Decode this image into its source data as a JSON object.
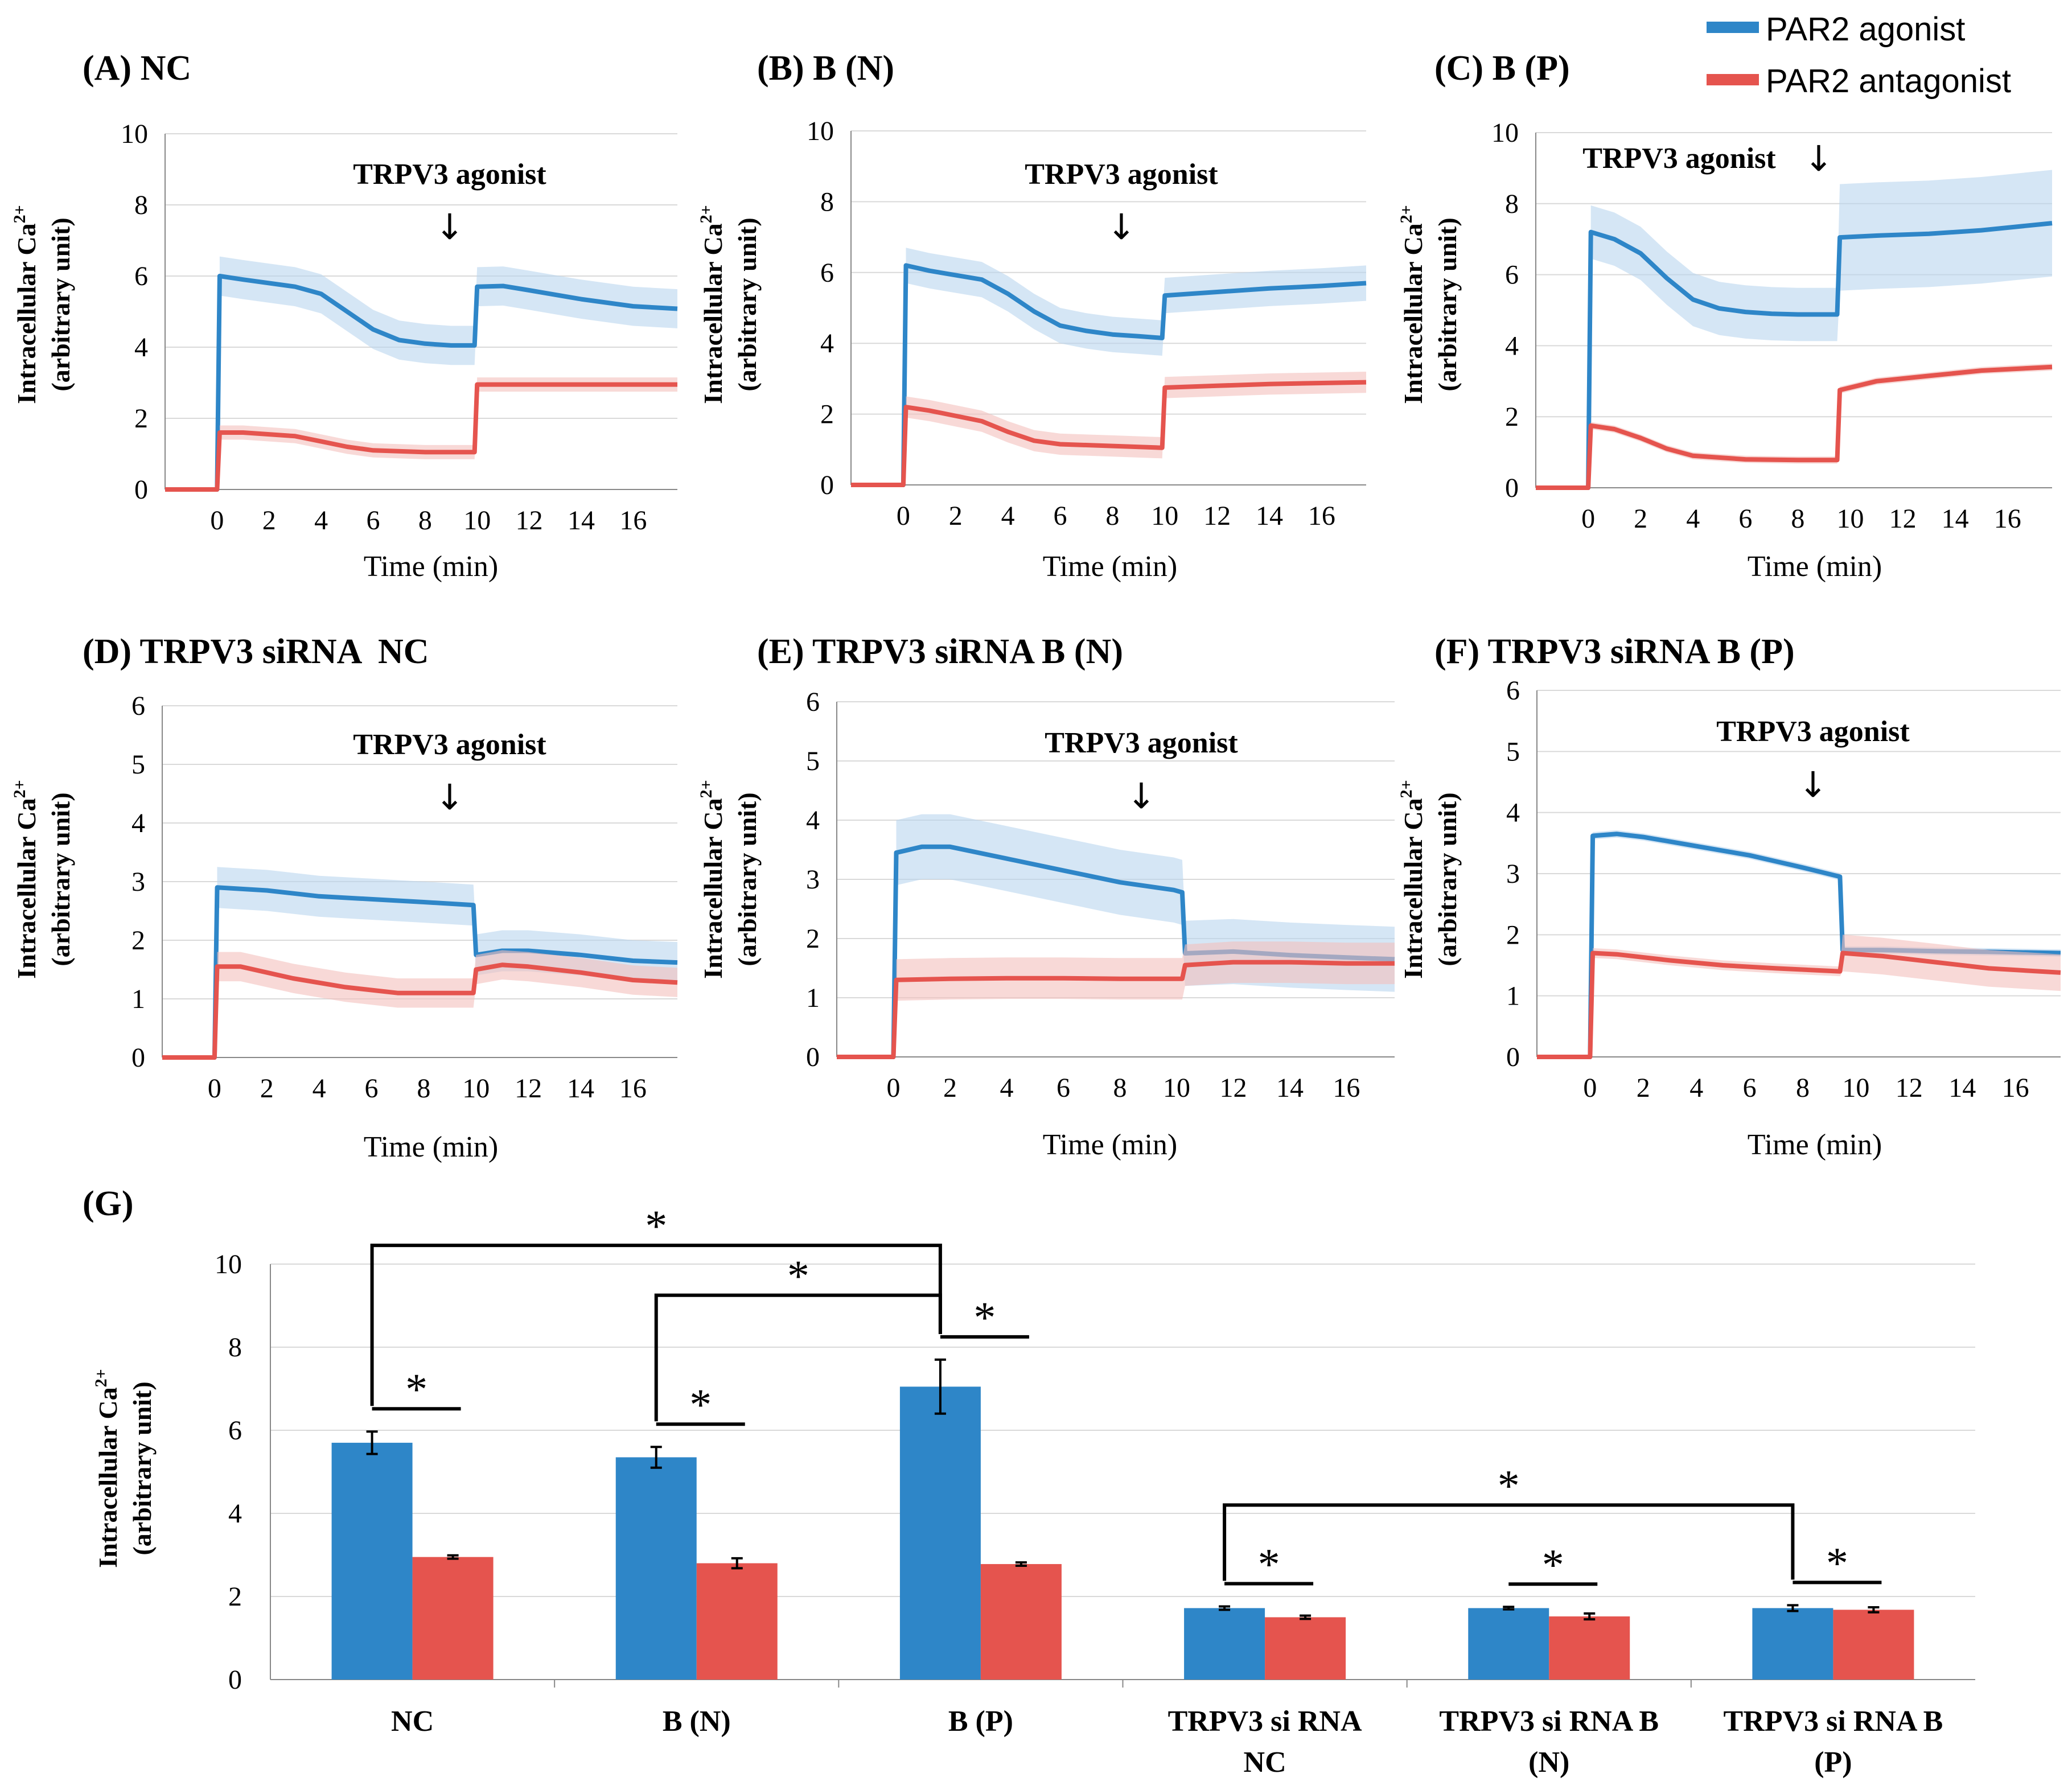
{
  "legend": {
    "agonist_label": "PAR2 agonist",
    "antagonist_label": "PAR2 antagonist"
  },
  "colors": {
    "agonist": "#2E86C8",
    "antagonist": "#E5544E",
    "agonist_band": "#b9d6ee",
    "antagonist_band": "#f4c0bd"
  },
  "chart_data": [
    {
      "type": "line",
      "id": "A",
      "title": "(A) NC",
      "annotation": "TRPV3 agonist",
      "annotation_x": 10,
      "xlabel": "Time (min)",
      "ylabel_line1": "Intracellular Ca",
      "ylabel_sup": "2+",
      "ylabel_line2": "(arbitrary unit)",
      "xlim": [
        -2,
        17.7
      ],
      "ylim": [
        0,
        10
      ],
      "x_ticks": [
        0,
        2,
        4,
        6,
        8,
        10,
        12,
        14,
        16
      ],
      "y_ticks": [
        0,
        2,
        4,
        6,
        8,
        10
      ],
      "series": [
        {
          "name": "PAR2 agonist",
          "error": 0.55,
          "points": [
            [
              -2,
              0
            ],
            [
              0,
              0
            ],
            [
              0.1,
              6.0
            ],
            [
              1,
              5.9
            ],
            [
              3,
              5.7
            ],
            [
              4,
              5.5
            ],
            [
              5,
              5.0
            ],
            [
              6,
              4.5
            ],
            [
              7,
              4.2
            ],
            [
              8,
              4.1
            ],
            [
              9,
              4.05
            ],
            [
              9.9,
              4.05
            ],
            [
              10,
              5.7
            ],
            [
              11,
              5.72
            ],
            [
              12,
              5.6
            ],
            [
              14,
              5.35
            ],
            [
              16,
              5.15
            ],
            [
              17.7,
              5.08
            ]
          ]
        },
        {
          "name": "PAR2 antagonist",
          "error": 0.2,
          "points": [
            [
              -2,
              0
            ],
            [
              0,
              0
            ],
            [
              0.1,
              1.6
            ],
            [
              1,
              1.6
            ],
            [
              3,
              1.5
            ],
            [
              4,
              1.35
            ],
            [
              5,
              1.2
            ],
            [
              6,
              1.1
            ],
            [
              8,
              1.05
            ],
            [
              9.9,
              1.05
            ],
            [
              10,
              2.95
            ],
            [
              12,
              2.95
            ],
            [
              14,
              2.95
            ],
            [
              17.7,
              2.95
            ]
          ]
        }
      ]
    },
    {
      "type": "line",
      "id": "B",
      "title": "(B) B (N)",
      "annotation": "TRPV3 agonist",
      "annotation_x": 10,
      "xlabel": "Time (min)",
      "ylabel_line1": "Intracellular Ca",
      "ylabel_sup": "2+",
      "ylabel_line2": "(arbitrary unit)",
      "xlim": [
        -2,
        17.7
      ],
      "ylim": [
        0,
        10
      ],
      "x_ticks": [
        0,
        2,
        4,
        6,
        8,
        10,
        12,
        14,
        16
      ],
      "y_ticks": [
        0,
        2,
        4,
        6,
        8,
        10
      ],
      "series": [
        {
          "name": "PAR2 agonist",
          "error": 0.5,
          "points": [
            [
              -2,
              0
            ],
            [
              0,
              0
            ],
            [
              0.1,
              6.2
            ],
            [
              1,
              6.05
            ],
            [
              3,
              5.8
            ],
            [
              4,
              5.4
            ],
            [
              5,
              4.9
            ],
            [
              6,
              4.5
            ],
            [
              7,
              4.35
            ],
            [
              8,
              4.25
            ],
            [
              9,
              4.2
            ],
            [
              9.9,
              4.15
            ],
            [
              10,
              5.35
            ],
            [
              12,
              5.45
            ],
            [
              14,
              5.55
            ],
            [
              16,
              5.62
            ],
            [
              17.7,
              5.7
            ]
          ]
        },
        {
          "name": "PAR2 antagonist",
          "error": 0.3,
          "points": [
            [
              -2,
              0
            ],
            [
              0,
              0
            ],
            [
              0.1,
              2.2
            ],
            [
              1,
              2.1
            ],
            [
              3,
              1.8
            ],
            [
              4,
              1.5
            ],
            [
              5,
              1.25
            ],
            [
              6,
              1.15
            ],
            [
              8,
              1.1
            ],
            [
              9.9,
              1.05
            ],
            [
              10,
              2.75
            ],
            [
              12,
              2.8
            ],
            [
              14,
              2.85
            ],
            [
              17.7,
              2.9
            ]
          ]
        }
      ]
    },
    {
      "type": "line",
      "id": "C",
      "title": "(C) B (P)",
      "annotation": "TRPV3 agonist",
      "annotation_x": 9.5,
      "xlabel": "Time (min)",
      "ylabel_line1": "Intracellular Ca",
      "ylabel_sup": "2+",
      "ylabel_line2": "(arbitrary unit)",
      "xlim": [
        -2,
        17.7
      ],
      "ylim": [
        0,
        10
      ],
      "x_ticks": [
        0,
        2,
        4,
        6,
        8,
        10,
        12,
        14,
        16
      ],
      "y_ticks": [
        0,
        2,
        4,
        6,
        8,
        10
      ],
      "series": [
        {
          "name": "PAR2 agonist",
          "error": 0.75,
          "error_after": 1.5,
          "step_x": 9.6,
          "points": [
            [
              -2,
              0
            ],
            [
              0,
              0
            ],
            [
              0.1,
              7.2
            ],
            [
              1,
              7.0
            ],
            [
              2,
              6.6
            ],
            [
              3,
              5.9
            ],
            [
              4,
              5.3
            ],
            [
              5,
              5.05
            ],
            [
              6,
              4.95
            ],
            [
              7,
              4.9
            ],
            [
              8,
              4.88
            ],
            [
              9.5,
              4.88
            ],
            [
              9.6,
              7.05
            ],
            [
              11,
              7.1
            ],
            [
              13,
              7.15
            ],
            [
              15,
              7.25
            ],
            [
              17.7,
              7.45
            ]
          ]
        },
        {
          "name": "PAR2 antagonist",
          "error": 0.1,
          "points": [
            [
              -2,
              0
            ],
            [
              0,
              0
            ],
            [
              0.1,
              1.75
            ],
            [
              1,
              1.65
            ],
            [
              2,
              1.4
            ],
            [
              3,
              1.1
            ],
            [
              4,
              0.9
            ],
            [
              6,
              0.8
            ],
            [
              8,
              0.78
            ],
            [
              9.5,
              0.78
            ],
            [
              9.6,
              2.75
            ],
            [
              11,
              3.0
            ],
            [
              13,
              3.15
            ],
            [
              15,
              3.3
            ],
            [
              17.7,
              3.4
            ]
          ]
        }
      ]
    },
    {
      "type": "line",
      "id": "D",
      "title": "(D) TRPV3 siRNA  NC",
      "annotation": "TRPV3 agonist",
      "annotation_x": 10,
      "xlabel": "Time (min)",
      "ylabel_line1": "Intracellular Ca",
      "ylabel_sup": "2+",
      "ylabel_line2": "(arbitrary unit)",
      "xlim": [
        -2,
        17.7
      ],
      "ylim": [
        0,
        6
      ],
      "x_ticks": [
        0,
        2,
        4,
        6,
        8,
        10,
        12,
        14,
        16
      ],
      "y_ticks": [
        0,
        1,
        2,
        3,
        4,
        5,
        6
      ],
      "series": [
        {
          "name": "PAR2 agonist",
          "error": 0.35,
          "points": [
            [
              -2,
              0
            ],
            [
              0,
              0
            ],
            [
              0.1,
              2.9
            ],
            [
              2,
              2.85
            ],
            [
              4,
              2.75
            ],
            [
              6,
              2.7
            ],
            [
              8,
              2.65
            ],
            [
              9.9,
              2.6
            ],
            [
              10,
              1.75
            ],
            [
              11,
              1.82
            ],
            [
              12,
              1.82
            ],
            [
              14,
              1.75
            ],
            [
              16,
              1.65
            ],
            [
              17.7,
              1.62
            ]
          ]
        },
        {
          "name": "PAR2 antagonist",
          "error": 0.25,
          "points": [
            [
              -2,
              0
            ],
            [
              0,
              0
            ],
            [
              0.1,
              1.55
            ],
            [
              1,
              1.55
            ],
            [
              3,
              1.35
            ],
            [
              5,
              1.2
            ],
            [
              7,
              1.1
            ],
            [
              9.9,
              1.1
            ],
            [
              10,
              1.5
            ],
            [
              11,
              1.58
            ],
            [
              12,
              1.55
            ],
            [
              14,
              1.45
            ],
            [
              16,
              1.32
            ],
            [
              17.7,
              1.28
            ]
          ]
        }
      ]
    },
    {
      "type": "line",
      "id": "E",
      "title": "(E) TRPV3 siRNA B (N)",
      "annotation": "TRPV3 agonist",
      "annotation_x": 10.5,
      "xlabel": "Time (min)",
      "ylabel_line1": "Intracellular Ca",
      "ylabel_sup": "2+",
      "ylabel_line2": "(arbitrary unit)",
      "xlim": [
        -2,
        17.7
      ],
      "ylim": [
        0,
        6
      ],
      "x_ticks": [
        0,
        2,
        4,
        6,
        8,
        10,
        12,
        14,
        16
      ],
      "y_ticks": [
        0,
        1,
        2,
        3,
        4,
        5,
        6
      ],
      "series": [
        {
          "name": "PAR2 agonist",
          "error": 0.55,
          "points": [
            [
              -2,
              0
            ],
            [
              0,
              0
            ],
            [
              0.1,
              3.45
            ],
            [
              1,
              3.55
            ],
            [
              2,
              3.55
            ],
            [
              4,
              3.35
            ],
            [
              6,
              3.15
            ],
            [
              8,
              2.95
            ],
            [
              9.9,
              2.82
            ],
            [
              10.2,
              2.78
            ],
            [
              10.3,
              1.75
            ],
            [
              12,
              1.78
            ],
            [
              14,
              1.72
            ],
            [
              16,
              1.68
            ],
            [
              17.7,
              1.65
            ]
          ]
        },
        {
          "name": "PAR2 antagonist",
          "error": 0.35,
          "points": [
            [
              -2,
              0
            ],
            [
              0,
              0
            ],
            [
              0.1,
              1.3
            ],
            [
              2,
              1.32
            ],
            [
              4,
              1.33
            ],
            [
              6,
              1.33
            ],
            [
              8,
              1.32
            ],
            [
              10.2,
              1.32
            ],
            [
              10.3,
              1.55
            ],
            [
              12,
              1.6
            ],
            [
              14,
              1.6
            ],
            [
              16,
              1.58
            ],
            [
              17.7,
              1.58
            ]
          ]
        }
      ]
    },
    {
      "type": "line",
      "id": "F",
      "title": "(F) TRPV3 siRNA B (P)",
      "annotation": "TRPV3 agonist",
      "annotation_x": 9.5,
      "xlabel": "Time (min)",
      "ylabel_line1": "Intracellular Ca",
      "ylabel_sup": "2+",
      "ylabel_line2": "(arbitrary unit)",
      "xlim": [
        -2,
        17.7
      ],
      "ylim": [
        0,
        6
      ],
      "x_ticks": [
        0,
        2,
        4,
        6,
        8,
        10,
        12,
        14,
        16
      ],
      "y_ticks": [
        0,
        1,
        2,
        3,
        4,
        5,
        6
      ],
      "series": [
        {
          "name": "PAR2 agonist",
          "error": 0.06,
          "points": [
            [
              -2,
              0
            ],
            [
              0,
              0
            ],
            [
              0.1,
              3.62
            ],
            [
              1,
              3.65
            ],
            [
              2,
              3.6
            ],
            [
              4,
              3.45
            ],
            [
              6,
              3.3
            ],
            [
              8,
              3.1
            ],
            [
              9.4,
              2.95
            ],
            [
              9.5,
              1.75
            ],
            [
              11,
              1.75
            ],
            [
              13,
              1.73
            ],
            [
              15,
              1.72
            ],
            [
              17.7,
              1.7
            ]
          ]
        },
        {
          "name": "PAR2 antagonist",
          "error": 0.08,
          "error_after": 0.3,
          "step_x": 9.5,
          "points": [
            [
              -2,
              0
            ],
            [
              0,
              0
            ],
            [
              0.1,
              1.7
            ],
            [
              1,
              1.68
            ],
            [
              3,
              1.58
            ],
            [
              5,
              1.5
            ],
            [
              7,
              1.45
            ],
            [
              9.4,
              1.4
            ],
            [
              9.5,
              1.7
            ],
            [
              11,
              1.65
            ],
            [
              13,
              1.55
            ],
            [
              15,
              1.45
            ],
            [
              17.7,
              1.38
            ]
          ]
        }
      ]
    },
    {
      "type": "bar",
      "id": "G",
      "title": "(G)",
      "ylabel_line1": "Intracellular Ca",
      "ylabel_sup": "2+",
      "ylabel_line2": "(arbitrary unit)",
      "ylim": [
        0,
        10
      ],
      "y_ticks": [
        0,
        2,
        4,
        6,
        8,
        10
      ],
      "categories": [
        {
          "lines": [
            "NC"
          ]
        },
        {
          "lines": [
            "B (N)"
          ]
        },
        {
          "lines": [
            "B (P)"
          ]
        },
        {
          "lines": [
            "TRPV3 si RNA",
            "NC"
          ]
        },
        {
          "lines": [
            "TRPV3 si RNA B",
            "(N)"
          ]
        },
        {
          "lines": [
            "TRPV3 si RNA B",
            "(P)"
          ]
        }
      ],
      "series": [
        {
          "name": "PAR2 agonist",
          "values": [
            5.7,
            5.35,
            7.05,
            1.72,
            1.72,
            1.72
          ],
          "errors": [
            0.27,
            0.25,
            0.65,
            0.04,
            0.03,
            0.07
          ]
        },
        {
          "name": "PAR2 antagonist",
          "values": [
            2.95,
            2.8,
            2.78,
            1.5,
            1.52,
            1.68
          ],
          "errors": [
            0.04,
            0.12,
            0.04,
            0.04,
            0.07,
            0.06
          ]
        }
      ],
      "significance": [
        {
          "type": "pair",
          "group": 0,
          "label": "*"
        },
        {
          "type": "pair",
          "group": 1,
          "label": "*"
        },
        {
          "type": "pair",
          "group": 2,
          "label": "*"
        },
        {
          "type": "pair",
          "group": 3,
          "label": "*"
        },
        {
          "type": "pair",
          "group": 4,
          "label": "*"
        },
        {
          "type": "pair",
          "group": 5,
          "label": "*"
        },
        {
          "type": "bracket",
          "from": 0,
          "to": 2,
          "level": 10.45,
          "label": "*"
        },
        {
          "type": "bracket",
          "from": 1,
          "to": 2,
          "level": 9.25,
          "label": "*"
        },
        {
          "type": "bracket",
          "from": 3,
          "to": 5,
          "level": 4.2,
          "label": "*"
        }
      ]
    }
  ]
}
